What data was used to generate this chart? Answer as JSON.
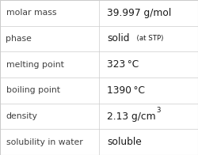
{
  "rows": [
    {
      "label": "molar mass",
      "value_parts": [
        {
          "text": "39.997 g/mol",
          "style": "normal"
        }
      ]
    },
    {
      "label": "phase",
      "value_parts": [
        {
          "text": "solid",
          "style": "normal"
        },
        {
          "text": "  (at STP)",
          "style": "small"
        }
      ]
    },
    {
      "label": "melting point",
      "value_parts": [
        {
          "text": "323 °C",
          "style": "normal"
        }
      ]
    },
    {
      "label": "boiling point",
      "value_parts": [
        {
          "text": "1390 °C",
          "style": "normal"
        }
      ]
    },
    {
      "label": "density",
      "value_parts": [
        {
          "text": "2.13 g/cm",
          "style": "normal"
        },
        {
          "text": "3",
          "style": "super"
        }
      ]
    },
    {
      "label": "solubility in water",
      "value_parts": [
        {
          "text": "soluble",
          "style": "normal"
        }
      ]
    }
  ],
  "col_split": 0.5,
  "bg_color": "#ffffff",
  "grid_color": "#cccccc",
  "label_color": "#404040",
  "value_color": "#1a1a1a",
  "label_fontsize": 7.8,
  "value_fontsize": 8.8,
  "small_fontsize": 6.2,
  "super_fontsize": 6.2
}
